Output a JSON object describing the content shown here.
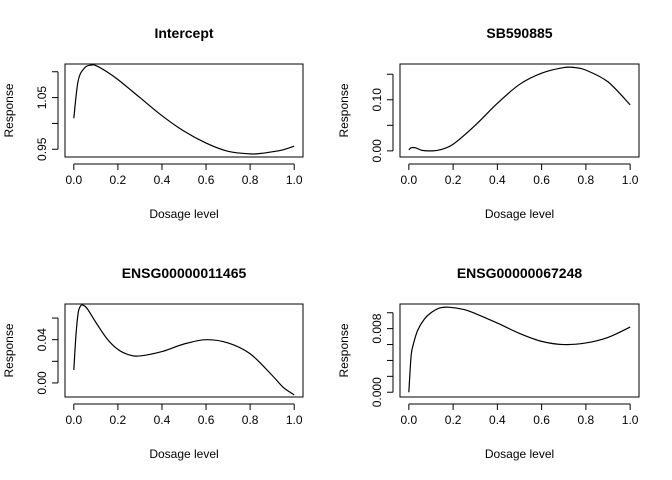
{
  "chart_data": [
    {
      "type": "line",
      "title": "Intercept",
      "xlabel": "Dosage level",
      "ylabel": "Response",
      "xlim": [
        0,
        1
      ],
      "ylim": [
        0.935,
        1.115
      ],
      "x_ticks": [
        0,
        0.2,
        0.4,
        0.6,
        0.8,
        1.0
      ],
      "x_tick_labels": [
        "0.0",
        "0.2",
        "0.4",
        "0.6",
        "0.8",
        "1.0"
      ],
      "y_ticks": [
        0.95,
        1.0,
        1.05,
        1.1
      ],
      "y_tick_labels": [
        "0.95",
        "",
        "1.05",
        ""
      ],
      "x": [
        0,
        0.02,
        0.05,
        0.08,
        0.1,
        0.15,
        0.2,
        0.3,
        0.4,
        0.5,
        0.6,
        0.7,
        0.8,
        0.85,
        0.9,
        0.95,
        1.0
      ],
      "y": [
        1.01,
        1.083,
        1.108,
        1.113,
        1.112,
        1.1,
        1.085,
        1.05,
        1.015,
        0.985,
        0.962,
        0.946,
        0.941,
        0.942,
        0.945,
        0.949,
        0.956
      ]
    },
    {
      "type": "line",
      "title": "SB590885",
      "xlabel": "Dosage level",
      "ylabel": "Response",
      "xlim": [
        0,
        1
      ],
      "ylim": [
        -0.012,
        0.17
      ],
      "x_ticks": [
        0,
        0.2,
        0.4,
        0.6,
        0.8,
        1.0
      ],
      "x_tick_labels": [
        "0.0",
        "0.2",
        "0.4",
        "0.6",
        "0.8",
        "1.0"
      ],
      "y_ticks": [
        0.0,
        0.05,
        0.1,
        0.15
      ],
      "y_tick_labels": [
        "0.00",
        "",
        "0.10",
        ""
      ],
      "x": [
        0,
        0.01,
        0.03,
        0.06,
        0.1,
        0.14,
        0.2,
        0.3,
        0.4,
        0.5,
        0.6,
        0.7,
        0.75,
        0.8,
        0.9,
        1.0
      ],
      "y": [
        0.002,
        0.006,
        0.006,
        0.001,
        0.0,
        0.002,
        0.013,
        0.05,
        0.093,
        0.13,
        0.152,
        0.163,
        0.163,
        0.158,
        0.135,
        0.09
      ]
    },
    {
      "type": "line",
      "title": "ENSG00000011465",
      "xlabel": "Dosage level",
      "ylabel": "Response",
      "xlim": [
        0,
        1
      ],
      "ylim": [
        -0.013,
        0.073
      ],
      "x_ticks": [
        0,
        0.2,
        0.4,
        0.6,
        0.8,
        1.0
      ],
      "x_tick_labels": [
        "0.0",
        "0.2",
        "0.4",
        "0.6",
        "0.8",
        "1.0"
      ],
      "y_ticks": [
        0.0,
        0.02,
        0.04,
        0.06
      ],
      "y_tick_labels": [
        "0.00",
        "",
        "0.04",
        ""
      ],
      "x": [
        0,
        0.01,
        0.02,
        0.03,
        0.04,
        0.06,
        0.1,
        0.15,
        0.2,
        0.25,
        0.3,
        0.4,
        0.5,
        0.6,
        0.7,
        0.8,
        0.9,
        0.95,
        1.0
      ],
      "y": [
        0.012,
        0.045,
        0.065,
        0.071,
        0.072,
        0.069,
        0.056,
        0.041,
        0.031,
        0.026,
        0.025,
        0.029,
        0.036,
        0.04,
        0.037,
        0.027,
        0.007,
        -0.004,
        -0.011
      ]
    },
    {
      "type": "line",
      "title": "ENSG00000067248",
      "xlabel": "Dosage level",
      "ylabel": "Response",
      "xlim": [
        0,
        1
      ],
      "ylim": [
        -0.0006,
        0.0111
      ],
      "x_ticks": [
        0,
        0.2,
        0.4,
        0.6,
        0.8,
        1.0
      ],
      "x_tick_labels": [
        "0.0",
        "0.2",
        "0.4",
        "0.6",
        "0.8",
        "1.0"
      ],
      "y_ticks": [
        0.0,
        0.002,
        0.004,
        0.006,
        0.008,
        0.01
      ],
      "y_tick_labels": [
        "0.000",
        "",
        "",
        "",
        "0.008",
        ""
      ],
      "x": [
        0,
        0.01,
        0.02,
        0.04,
        0.07,
        0.1,
        0.14,
        0.18,
        0.25,
        0.3,
        0.4,
        0.5,
        0.6,
        0.7,
        0.8,
        0.9,
        1.0
      ],
      "y": [
        0.0,
        0.0045,
        0.006,
        0.0078,
        0.0092,
        0.01,
        0.0106,
        0.0107,
        0.0104,
        0.0099,
        0.0087,
        0.0074,
        0.0064,
        0.006,
        0.0062,
        0.0069,
        0.0082
      ]
    }
  ]
}
